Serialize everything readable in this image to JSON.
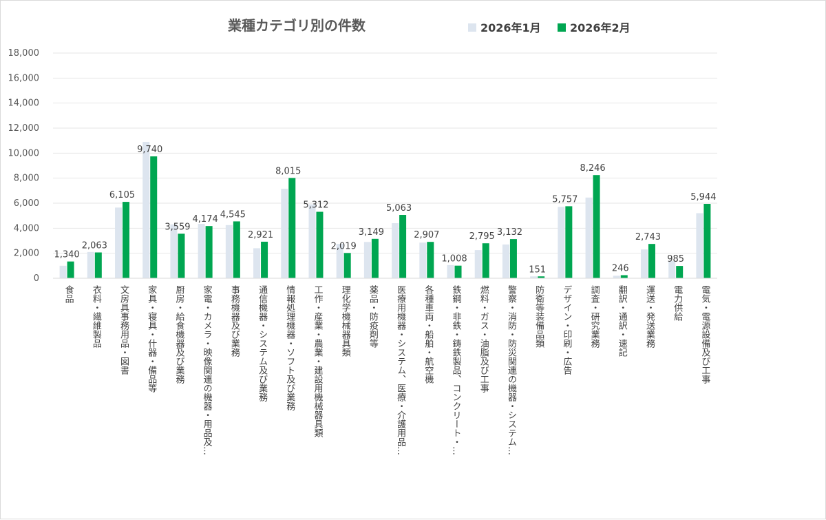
{
  "chart_data": {
    "type": "bar",
    "title": "業種カテゴリ別の件数",
    "xlabel": "",
    "ylabel": "",
    "ylim": [
      0,
      18000
    ],
    "yticks": [
      "0",
      "2,000",
      "4,000",
      "6,000",
      "8,000",
      "10,000",
      "12,000",
      "14,000",
      "16,000",
      "18,000"
    ],
    "grid": true,
    "legend_position": "top-right",
    "categories": [
      "食品",
      "衣料・繊維製品",
      "文房具事務用品・図書",
      "家具・寝具・什器・備品等",
      "厨房・給食機器及び業務",
      "家電・カメラ・映像関連の機器・用品及…",
      "事務機器及び業務",
      "通信機器・システム及び業務",
      "情報処理機器・ソフト及び業務",
      "工作・産業・農業・建設用機械器具類",
      "理化学機械器具類",
      "薬品・防疫剤等",
      "医療用機器・システム、医療・介護用品…",
      "各種車両・船舶・航空機",
      "鉄鋼・非鉄・鋳鉄製品、コンクリート・…",
      "燃料・ガス・油脂及び工事",
      "警察・消防・防災関連の機器・システム…",
      "防衛等装備品類",
      "デザイン・印刷・広告",
      "調査・研究業務",
      "翻訳・通訳・速記",
      "運送・発送業務",
      "電力供給",
      "電気・電源設備及び工事"
    ],
    "series": [
      {
        "name": "2026年1月",
        "color": "#dde5ef",
        "values": [
          1000,
          2100,
          5650,
          10900,
          4300,
          4350,
          4250,
          2400,
          7150,
          5900,
          2750,
          2900,
          4400,
          2850,
          1050,
          2250,
          2700,
          150,
          5700,
          6450,
          200,
          2300,
          1380,
          5200
        ]
      },
      {
        "name": "2026年2月",
        "color": "#00a651",
        "values": [
          1340,
          2063,
          6105,
          9740,
          3559,
          4174,
          4545,
          2921,
          8015,
          5312,
          2019,
          3149,
          5063,
          2907,
          1008,
          2795,
          3132,
          151,
          5757,
          8246,
          246,
          2743,
          985,
          5944
        ],
        "data_labels": [
          "1,340",
          "2,063",
          "6,105",
          "9,740",
          "3,559",
          "4,174",
          "4,545",
          "2,921",
          "8,015",
          "5,312",
          "2,019",
          "3,149",
          "5,063",
          "2,907",
          "1,008",
          "2,795",
          "3,132",
          "151",
          "5,757",
          "8,246",
          "246",
          "2,743",
          "985",
          "5,944"
        ]
      }
    ]
  }
}
